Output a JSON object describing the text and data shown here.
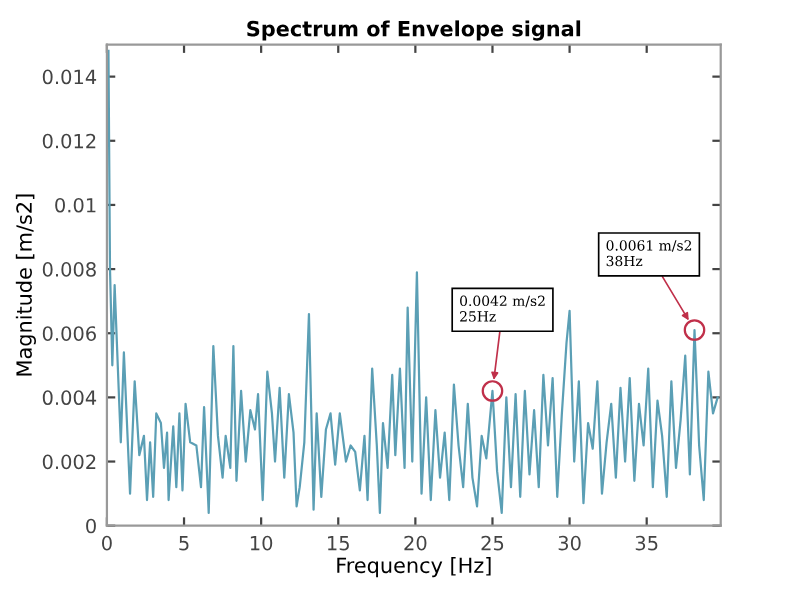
{
  "chart_data": {
    "type": "line",
    "title": "Spectrum of Envelope signal",
    "xlabel": "Frequency [Hz]",
    "ylabel": "Magnitude [m/s2]",
    "xlim": [
      0,
      39.8
    ],
    "xticks": [
      0,
      5,
      10,
      15,
      20,
      25,
      30,
      35
    ],
    "ylim": [
      0,
      0.015
    ],
    "yticks": [
      0,
      0.002,
      0.004,
      0.006,
      0.008,
      0.01,
      0.012,
      0.014
    ],
    "grid": false,
    "marker": "none",
    "line_style": "solid",
    "series": [
      {
        "color": "#5b9fb5",
        "x": [
          0.1,
          0.2,
          0.35,
          0.5,
          0.8,
          0.9,
          1.1,
          1.5,
          1.8,
          2.1,
          2.4,
          2.6,
          2.8,
          3.0,
          3.2,
          3.5,
          3.7,
          3.9,
          4.0,
          4.3,
          4.5,
          4.7,
          4.9,
          5.1,
          5.4,
          5.8,
          6.1,
          6.3,
          6.6,
          6.9,
          7.2,
          7.5,
          7.7,
          8.0,
          8.2,
          8.4,
          8.7,
          9.0,
          9.3,
          9.6,
          9.8,
          10.1,
          10.4,
          10.7,
          10.9,
          11.2,
          11.5,
          11.8,
          12.1,
          12.3,
          12.5,
          12.8,
          13.1,
          13.4,
          13.6,
          13.9,
          14.2,
          14.5,
          14.8,
          15.1,
          15.5,
          15.8,
          16.1,
          16.4,
          16.7,
          16.9,
          17.2,
          17.5,
          17.7,
          17.9,
          18.2,
          18.5,
          18.7,
          19.0,
          19.3,
          19.5,
          19.8,
          20.1,
          20.4,
          20.7,
          21.0,
          21.3,
          21.6,
          21.9,
          22.2,
          22.5,
          22.8,
          23.1,
          23.4,
          23.7,
          24.0,
          24.3,
          24.6,
          25.0,
          25.3,
          25.6,
          25.9,
          26.2,
          26.5,
          26.8,
          27.1,
          27.4,
          27.7,
          28.0,
          28.3,
          28.6,
          28.9,
          29.2,
          29.5,
          29.8,
          30.0,
          30.3,
          30.6,
          30.9,
          31.2,
          31.5,
          31.8,
          32.1,
          32.4,
          32.7,
          33.0,
          33.3,
          33.6,
          33.9,
          34.2,
          34.5,
          34.8,
          35.1,
          35.4,
          35.7,
          36.0,
          36.3,
          36.6,
          36.9,
          37.2,
          37.5,
          37.8,
          38.1,
          38.4,
          38.7,
          39.0,
          39.3,
          39.6
        ],
        "values": [
          0.0148,
          0.008,
          0.005,
          0.0075,
          0.0038,
          0.0026,
          0.0054,
          0.001,
          0.0045,
          0.0022,
          0.0028,
          0.0008,
          0.0026,
          0.0009,
          0.0035,
          0.0032,
          0.0018,
          0.0029,
          0.0008,
          0.0031,
          0.0012,
          0.0035,
          0.0011,
          0.0038,
          0.0026,
          0.0025,
          0.0012,
          0.0037,
          0.0004,
          0.0056,
          0.0028,
          0.0015,
          0.0028,
          0.0018,
          0.0056,
          0.0014,
          0.0042,
          0.002,
          0.0036,
          0.003,
          0.0041,
          0.0008,
          0.0048,
          0.0035,
          0.002,
          0.0043,
          0.0015,
          0.0041,
          0.0029,
          0.0006,
          0.0012,
          0.0026,
          0.0066,
          0.0005,
          0.0035,
          0.0009,
          0.003,
          0.0035,
          0.0019,
          0.0035,
          0.002,
          0.0025,
          0.0023,
          0.0011,
          0.0028,
          0.0008,
          0.0049,
          0.0025,
          0.0004,
          0.0032,
          0.0018,
          0.0047,
          0.0022,
          0.0049,
          0.0018,
          0.0068,
          0.002,
          0.0079,
          0.001,
          0.004,
          0.0008,
          0.0036,
          0.0015,
          0.0029,
          0.0008,
          0.0044,
          0.0025,
          0.0012,
          0.0038,
          0.0015,
          0.0006,
          0.0028,
          0.0021,
          0.0042,
          0.0017,
          0.0004,
          0.004,
          0.0012,
          0.0041,
          0.0009,
          0.0042,
          0.0016,
          0.0036,
          0.0012,
          0.0047,
          0.0025,
          0.0046,
          0.0009,
          0.0035,
          0.0057,
          0.0067,
          0.002,
          0.0045,
          0.0007,
          0.0032,
          0.0024,
          0.0045,
          0.001,
          0.0026,
          0.0038,
          0.0015,
          0.0043,
          0.002,
          0.0046,
          0.0014,
          0.0038,
          0.0025,
          0.0049,
          0.0012,
          0.0039,
          0.0028,
          0.0009,
          0.0045,
          0.0018,
          0.0033,
          0.0053,
          0.0016,
          0.0061,
          0.0025,
          0.0008,
          0.0048,
          0.0035,
          0.004
        ]
      }
    ],
    "annotations": [
      {
        "text": "0.0042 m/s2\n25Hz",
        "x": 25,
        "y": 0.0042
      },
      {
        "text": "0.0061 m/s2\n38Hz",
        "x": 38.1,
        "y": 0.0061
      }
    ]
  }
}
